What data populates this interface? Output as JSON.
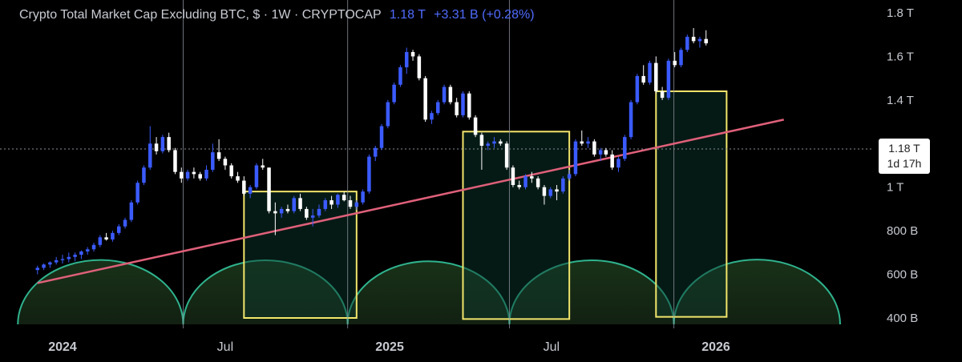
{
  "header": {
    "symbol": "Crypto Total Market Cap Excluding BTC, $ · 1W · CRYPTOCAP",
    "value": "1.18 T",
    "change": "+3.31 B (+0.28%)"
  },
  "price_label": {
    "value": "1.18 T",
    "countdown": "1d 17h"
  },
  "colors": {
    "background": "#000000",
    "up_candle": "#3b5bff",
    "down_candle": "#ffffff",
    "trendline": "#e0607a",
    "cycle_arcs": "#2fb38e",
    "boxes": "#f2e56b",
    "vertical_lines": "#8a8f99",
    "axis_text": "#c7cad1"
  },
  "chart_data": {
    "type": "candlestick",
    "title": "Crypto Total Market Cap Excluding BTC, $ · 1W · CRYPTOCAP",
    "timeframe": "1W",
    "y_axis": {
      "scale": "linear",
      "unit": "USD",
      "ylim": [
        400,
        1800
      ],
      "ticks": [
        "1.8 T",
        "1.6 T",
        "1.4 T",
        "1.2 T",
        "1 T",
        "800 B",
        "600 B",
        "400 B"
      ]
    },
    "x_axis": {
      "range": [
        "2023-12-04",
        "2026-05-25"
      ],
      "ticks": [
        {
          "label": "2024",
          "date": "2024-01-01"
        },
        {
          "label": "Jul",
          "date": "2024-07-01"
        },
        {
          "label": "2025",
          "date": "2025-01-01"
        },
        {
          "label": "Jul",
          "date": "2025-07-01"
        },
        {
          "label": "2026",
          "date": "2026-01-01"
        }
      ]
    },
    "last_value": 1180,
    "ohlc": [
      [
        "2023-12-04",
        620,
        640,
        600,
        630
      ],
      [
        "2023-12-11",
        630,
        650,
        620,
        645
      ],
      [
        "2023-12-18",
        645,
        660,
        630,
        655
      ],
      [
        "2023-12-25",
        655,
        680,
        645,
        665
      ],
      [
        "2024-01-01",
        665,
        690,
        650,
        670
      ],
      [
        "2024-01-08",
        670,
        700,
        655,
        680
      ],
      [
        "2024-01-15",
        680,
        700,
        660,
        690
      ],
      [
        "2024-01-22",
        690,
        710,
        670,
        705
      ],
      [
        "2024-01-29",
        705,
        725,
        690,
        715
      ],
      [
        "2024-02-05",
        715,
        745,
        705,
        735
      ],
      [
        "2024-02-12",
        735,
        780,
        725,
        770
      ],
      [
        "2024-02-19",
        770,
        790,
        755,
        760
      ],
      [
        "2024-02-26",
        760,
        800,
        750,
        790
      ],
      [
        "2024-03-04",
        790,
        830,
        780,
        820
      ],
      [
        "2024-03-11",
        820,
        860,
        810,
        850
      ],
      [
        "2024-03-18",
        850,
        940,
        840,
        930
      ],
      [
        "2024-03-25",
        930,
        1030,
        920,
        1020
      ],
      [
        "2024-04-01",
        1020,
        1100,
        1010,
        1090
      ],
      [
        "2024-04-08",
        1090,
        1280,
        1080,
        1200
      ],
      [
        "2024-04-15",
        1200,
        1230,
        1150,
        1165
      ],
      [
        "2024-04-22",
        1165,
        1240,
        1155,
        1230
      ],
      [
        "2024-04-29",
        1230,
        1250,
        1160,
        1170
      ],
      [
        "2024-05-06",
        1170,
        1180,
        1060,
        1070
      ],
      [
        "2024-05-13",
        1070,
        1090,
        1020,
        1040
      ],
      [
        "2024-05-20",
        1040,
        1080,
        1030,
        1070
      ],
      [
        "2024-05-27",
        1070,
        1090,
        1040,
        1060
      ],
      [
        "2024-06-03",
        1060,
        1070,
        1030,
        1040
      ],
      [
        "2024-06-10",
        1040,
        1100,
        1030,
        1080
      ],
      [
        "2024-06-17",
        1080,
        1200,
        1070,
        1160
      ],
      [
        "2024-06-24",
        1160,
        1220,
        1120,
        1130
      ],
      [
        "2024-07-01",
        1130,
        1140,
        1080,
        1100
      ],
      [
        "2024-07-08",
        1100,
        1110,
        1040,
        1050
      ],
      [
        "2024-07-15",
        1050,
        1070,
        1020,
        1030
      ],
      [
        "2024-07-22",
        1030,
        1050,
        960,
        970
      ],
      [
        "2024-07-29",
        970,
        1010,
        950,
        1000
      ],
      [
        "2024-08-05",
        1000,
        1110,
        990,
        1100
      ],
      [
        "2024-08-12",
        1100,
        1130,
        1080,
        1090
      ],
      [
        "2024-08-19",
        1090,
        1090,
        880,
        890
      ],
      [
        "2024-08-26",
        890,
        930,
        780,
        880
      ],
      [
        "2024-09-02",
        880,
        910,
        860,
        900
      ],
      [
        "2024-09-09",
        900,
        920,
        880,
        890
      ],
      [
        "2024-09-16",
        890,
        960,
        880,
        950
      ],
      [
        "2024-09-23",
        950,
        970,
        890,
        900
      ],
      [
        "2024-09-30",
        900,
        910,
        850,
        860
      ],
      [
        "2024-10-07",
        860,
        900,
        820,
        870
      ],
      [
        "2024-10-14",
        870,
        920,
        860,
        900
      ],
      [
        "2024-10-21",
        900,
        950,
        890,
        940
      ],
      [
        "2024-10-28",
        940,
        960,
        900,
        920
      ],
      [
        "2024-11-04",
        920,
        970,
        905,
        965
      ],
      [
        "2024-11-11",
        965,
        980,
        935,
        940
      ],
      [
        "2024-11-18",
        940,
        960,
        900,
        910
      ],
      [
        "2024-11-25",
        910,
        940,
        895,
        930
      ],
      [
        "2024-12-02",
        930,
        990,
        920,
        980
      ],
      [
        "2024-12-09",
        980,
        1150,
        970,
        1140
      ],
      [
        "2024-12-16",
        1140,
        1190,
        1120,
        1180
      ],
      [
        "2024-12-23",
        1180,
        1290,
        1170,
        1280
      ],
      [
        "2024-12-30",
        1280,
        1400,
        1270,
        1390
      ],
      [
        "2025-01-06",
        1390,
        1480,
        1380,
        1470
      ],
      [
        "2025-01-13",
        1470,
        1560,
        1460,
        1550
      ],
      [
        "2025-01-20",
        1550,
        1640,
        1520,
        1620
      ],
      [
        "2025-01-27",
        1620,
        1630,
        1580,
        1600
      ],
      [
        "2025-02-03",
        1600,
        1610,
        1490,
        1500
      ],
      [
        "2025-02-10",
        1500,
        1510,
        1300,
        1310
      ],
      [
        "2025-02-17",
        1310,
        1350,
        1290,
        1340
      ],
      [
        "2025-02-24",
        1340,
        1400,
        1330,
        1390
      ],
      [
        "2025-03-03",
        1390,
        1470,
        1380,
        1460
      ],
      [
        "2025-03-10",
        1460,
        1470,
        1380,
        1390
      ],
      [
        "2025-03-17",
        1390,
        1410,
        1320,
        1330
      ],
      [
        "2025-03-24",
        1330,
        1440,
        1320,
        1430
      ],
      [
        "2025-03-31",
        1430,
        1440,
        1310,
        1320
      ],
      [
        "2025-04-07",
        1320,
        1330,
        1230,
        1240
      ],
      [
        "2025-04-14",
        1240,
        1250,
        1080,
        1190
      ],
      [
        "2025-04-21",
        1190,
        1210,
        1170,
        1200
      ],
      [
        "2025-04-28",
        1200,
        1230,
        1180,
        1210
      ],
      [
        "2025-05-05",
        1210,
        1220,
        1190,
        1200
      ],
      [
        "2025-05-12",
        1200,
        1210,
        1080,
        1090
      ],
      [
        "2025-05-19",
        1090,
        1100,
        1000,
        1010
      ],
      [
        "2025-05-26",
        1010,
        1030,
        990,
        1000
      ],
      [
        "2025-06-02",
        1000,
        1060,
        990,
        1050
      ],
      [
        "2025-06-09",
        1050,
        1070,
        1020,
        1040
      ],
      [
        "2025-06-16",
        1040,
        1050,
        990,
        1000
      ],
      [
        "2025-06-23",
        1000,
        1010,
        920,
        960
      ],
      [
        "2025-06-30",
        960,
        1000,
        950,
        990
      ],
      [
        "2025-07-07",
        990,
        1010,
        940,
        980
      ],
      [
        "2025-07-14",
        980,
        1050,
        970,
        1040
      ],
      [
        "2025-07-21",
        1040,
        1080,
        1030,
        1060
      ],
      [
        "2025-07-28",
        1060,
        1220,
        1050,
        1210
      ],
      [
        "2025-08-04",
        1210,
        1260,
        1190,
        1200
      ],
      [
        "2025-08-11",
        1200,
        1230,
        1180,
        1210
      ],
      [
        "2025-08-18",
        1210,
        1220,
        1140,
        1150
      ],
      [
        "2025-08-25",
        1150,
        1180,
        1120,
        1170
      ],
      [
        "2025-08-31",
        1170,
        1180,
        1140,
        1150
      ],
      [
        "2025-09-07",
        1150,
        1170,
        1080,
        1090
      ],
      [
        "2025-09-14",
        1090,
        1140,
        1070,
        1130
      ],
      [
        "2025-09-21",
        1130,
        1240,
        1120,
        1230
      ],
      [
        "2025-09-28",
        1230,
        1400,
        1220,
        1390
      ],
      [
        "2025-10-05",
        1390,
        1520,
        1380,
        1510
      ],
      [
        "2025-10-12",
        1510,
        1560,
        1470,
        1480
      ],
      [
        "2025-10-19",
        1480,
        1580,
        1470,
        1570
      ],
      [
        "2025-10-26",
        1570,
        1600,
        1430,
        1440
      ],
      [
        "2025-11-02",
        1440,
        1460,
        1400,
        1410
      ],
      [
        "2025-11-09",
        1410,
        1590,
        1400,
        1580
      ],
      [
        "2025-11-16",
        1580,
        1620,
        1550,
        1560
      ],
      [
        "2025-11-23",
        1560,
        1640,
        1550,
        1630
      ],
      [
        "2025-11-30",
        1630,
        1700,
        1620,
        1690
      ],
      [
        "2025-12-07",
        1690,
        1730,
        1660,
        1670
      ],
      [
        "2025-12-14",
        1670,
        1690,
        1640,
        1680
      ],
      [
        "2025-12-21",
        1680,
        1720,
        1650,
        1660
      ]
    ]
  }
}
